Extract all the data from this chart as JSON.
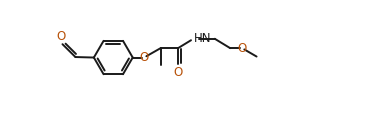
{
  "bg_color": "#ffffff",
  "line_color": "#1a1a1a",
  "label_color_O": "#b8520a",
  "label_color_N": "#1a1a1a",
  "line_width": 1.4,
  "font_size": 8.0,
  "figsize": [
    3.89,
    1.21
  ],
  "dpi": 100,
  "xlim": [
    0.0,
    3.89
  ],
  "ylim": [
    0.0,
    1.21
  ]
}
